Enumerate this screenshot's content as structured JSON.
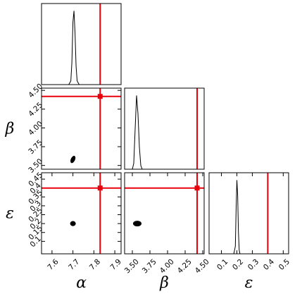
{
  "chart_data": [
    {
      "type": "line",
      "x": [
        7.68,
        7.69,
        7.695,
        7.7,
        7.705,
        7.71,
        7.715,
        7.72,
        7.73
      ],
      "values": [
        0,
        0.05,
        0.3,
        0.85,
        1,
        0.7,
        0.25,
        0.05,
        0
      ],
      "xlim": [
        7.55,
        7.93
      ],
      "ylim": [
        0,
        1.1
      ],
      "truth_x": 7.83,
      "color": "#000000",
      "truth_color": "#e8000b"
    },
    {
      "type": "scatter",
      "x": [
        7.7
      ],
      "y": [
        3.58
      ],
      "xlim": [
        7.55,
        7.93
      ],
      "ylim": [
        3.45,
        4.53
      ],
      "yticks": [
        {
          "value": 3.5,
          "label": "3.50"
        },
        {
          "value": 3.75,
          "label": "3.75"
        },
        {
          "value": 4,
          "label": "4.00"
        },
        {
          "value": 4.25,
          "label": "4.25"
        },
        {
          "value": 4.5,
          "label": "4.50"
        }
      ],
      "ylabel": "β",
      "truth_x": 7.83,
      "truth_y": 4.42,
      "color": "#000000",
      "truth_color": "#e8000b"
    },
    {
      "type": "scatter",
      "x": [
        7.7
      ],
      "y": [
        0.2
      ],
      "xlim": [
        7.55,
        7.93
      ],
      "ylim": [
        0.03,
        0.486
      ],
      "xticks": [
        7.6,
        7.7,
        7.8,
        7.9
      ],
      "yticks": [
        0.1,
        0.15,
        0.2,
        0.25,
        0.3,
        0.35,
        0.4,
        0.45
      ],
      "xlabel": "α",
      "ylabel": "ε",
      "truth_x": 7.83,
      "truth_y": 0.4,
      "color": "#000000",
      "truth_color": "#e8000b"
    },
    {
      "type": "line",
      "x": [
        3.5,
        3.52,
        3.54,
        3.56,
        3.58,
        3.6,
        3.62,
        3.64
      ],
      "values": [
        0,
        0.08,
        0.55,
        1,
        0.75,
        0.3,
        0.05,
        0
      ],
      "xlim": [
        3.39,
        4.52
      ],
      "ylim": [
        0,
        1.1
      ],
      "truth_x": 4.42,
      "color": "#000000",
      "truth_color": "#e8000b"
    },
    {
      "type": "scatter",
      "x": [
        3.57
      ],
      "y": [
        0.2
      ],
      "xlim": [
        3.39,
        4.52
      ],
      "ylim": [
        0.03,
        0.486
      ],
      "xticks": [
        {
          "value": 3.5,
          "label": "3.50"
        },
        {
          "value": 3.75,
          "label": "3.75"
        },
        {
          "value": 4,
          "label": "4.00"
        },
        {
          "value": 4.25,
          "label": "4.25"
        },
        {
          "value": 4.5,
          "label": "4.50"
        }
      ],
      "xlabel": "β",
      "truth_x": 4.42,
      "truth_y": 0.4,
      "color": "#000000",
      "truth_color": "#e8000b"
    },
    {
      "type": "line",
      "x": [
        0.18,
        0.19,
        0.195,
        0.2,
        0.205,
        0.21,
        0.215,
        0.22
      ],
      "values": [
        0,
        0.1,
        0.6,
        1,
        0.8,
        0.3,
        0.05,
        0
      ],
      "xlim": [
        0.02,
        0.535
      ],
      "ylim": [
        0,
        1.1
      ],
      "xticks": [
        0.1,
        0.2,
        0.3,
        0.4,
        0.5
      ],
      "xlabel": "ε",
      "truth_x": 0.4,
      "color": "#000000",
      "truth_color": "#e8000b"
    }
  ]
}
